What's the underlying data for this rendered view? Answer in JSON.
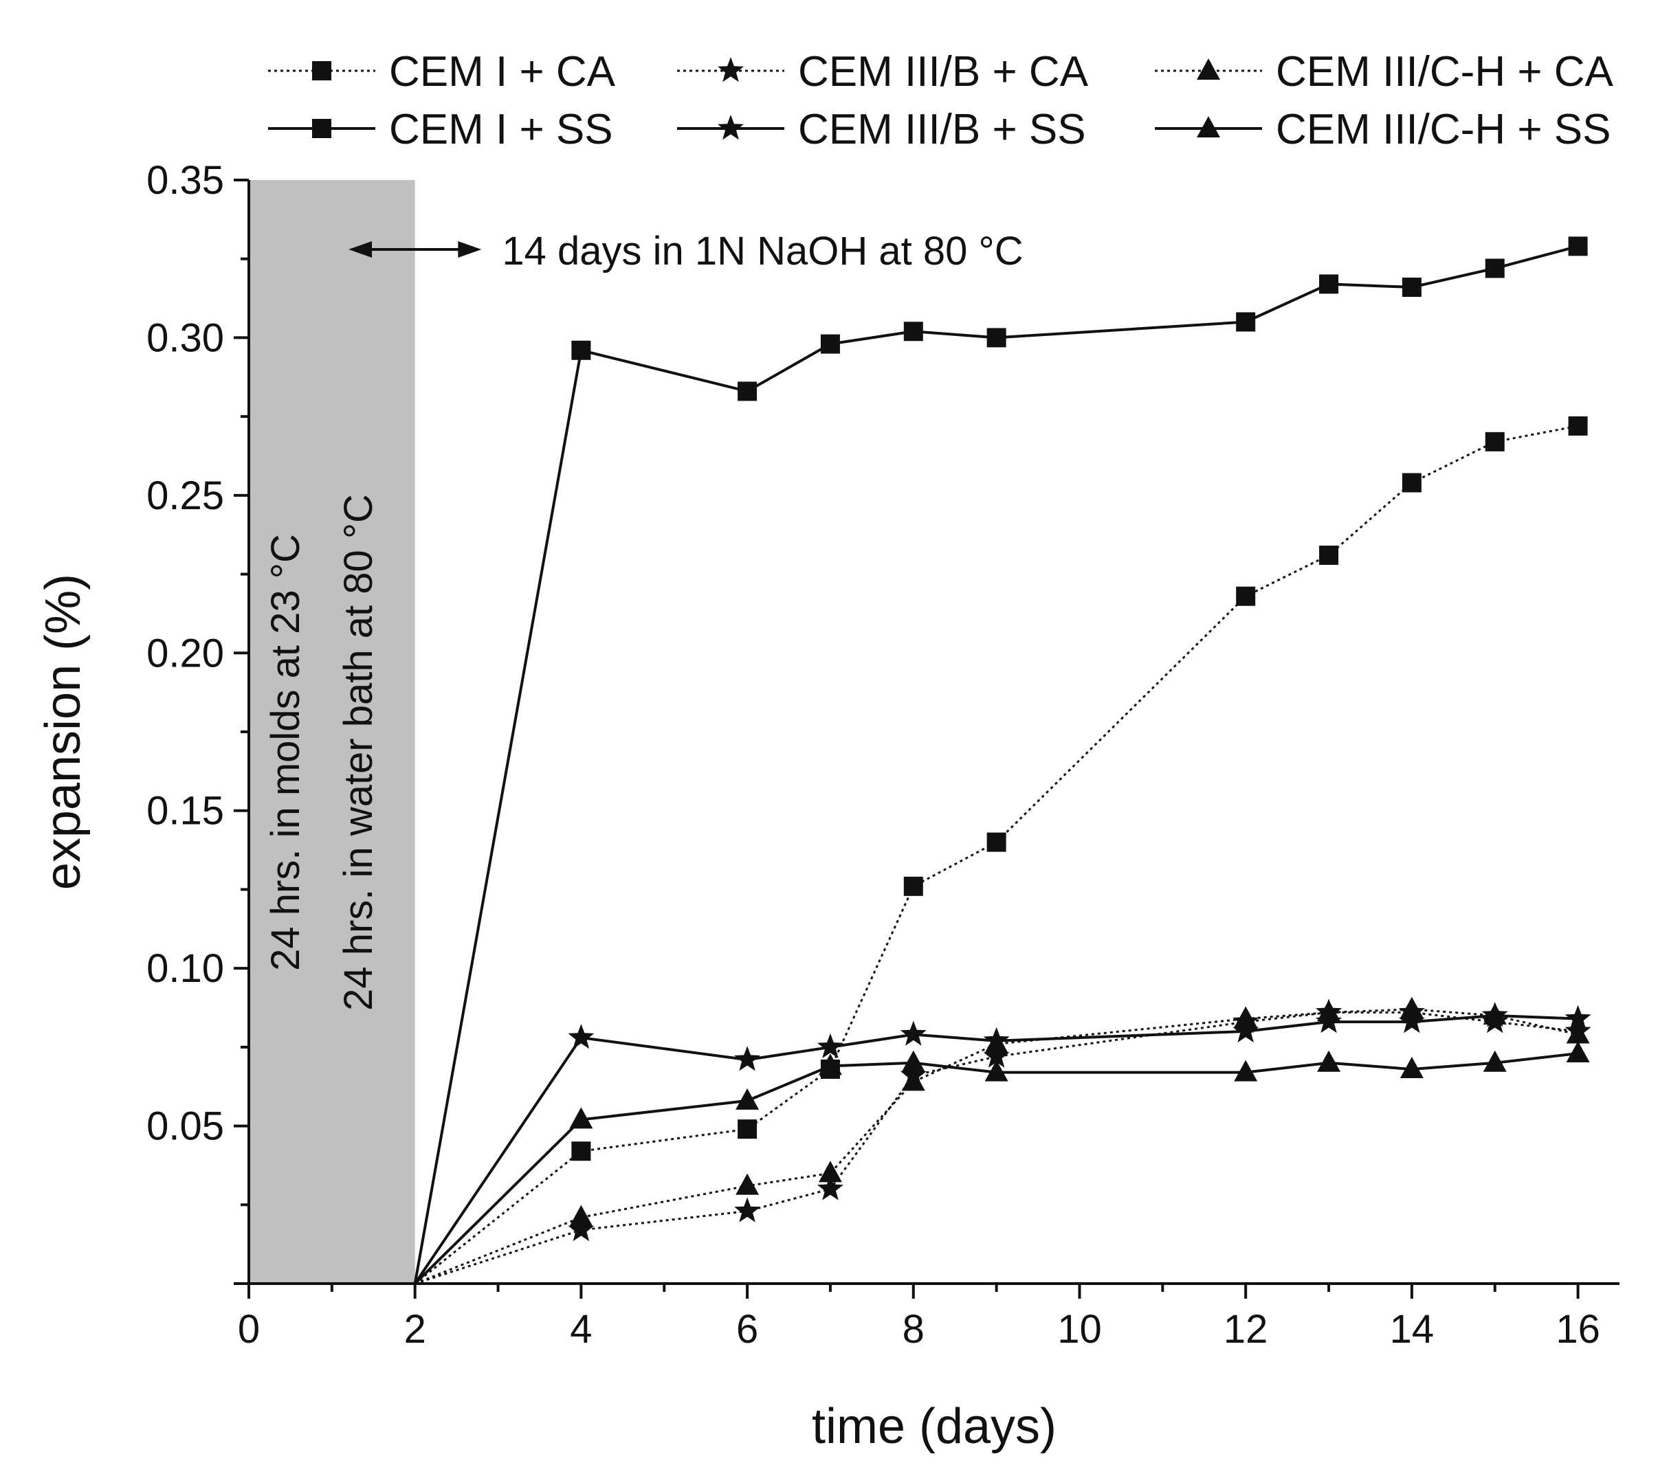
{
  "chart_data": {
    "type": "line",
    "title": "",
    "xlabel": "time (days)",
    "ylabel": "expansion (%)",
    "xlim": [
      0,
      16.5
    ],
    "ylim": [
      0,
      0.35
    ],
    "x_ticks": [
      "0",
      "2",
      "4",
      "6",
      "8",
      "10",
      "12",
      "14",
      "16"
    ],
    "y_ticks": [
      "0.05",
      "0.10",
      "0.15",
      "0.20",
      "0.25",
      "0.30",
      "0.35"
    ],
    "grid": false,
    "legend_position": "top",
    "shaded_region": {
      "x_range": [
        0,
        2
      ],
      "color": "#c0c0c0",
      "label_line1": "24 hrs. in molds at 23 °C",
      "label_line2": "24 hrs. in water bath at 80 °C"
    },
    "annotation": {
      "text": "14 days in 1N NaOH at 80 °C",
      "arrow_x_range": [
        1.2,
        2.8
      ],
      "arrow_y": 0.328
    },
    "series": [
      {
        "name": "CEM I + CA",
        "line_style": "dotted",
        "marker": "square",
        "x": [
          2,
          4,
          6,
          7,
          8,
          9,
          12,
          13,
          14,
          15,
          16
        ],
        "values": [
          0,
          0.042,
          0.049,
          0.068,
          0.126,
          0.14,
          0.218,
          0.231,
          0.254,
          0.267,
          0.272
        ]
      },
      {
        "name": "CEM III/B + CA",
        "line_style": "dotted",
        "marker": "star",
        "x": [
          2,
          4,
          6,
          7,
          8,
          9,
          12,
          13,
          14,
          15,
          16
        ],
        "values": [
          0,
          0.017,
          0.023,
          0.03,
          0.066,
          0.072,
          0.083,
          0.086,
          0.086,
          0.083,
          0.08
        ]
      },
      {
        "name": "CEM III/C-H + CA",
        "line_style": "dotted",
        "marker": "triangle",
        "x": [
          2,
          4,
          6,
          7,
          8,
          9,
          12,
          13,
          14,
          15,
          16
        ],
        "values": [
          0,
          0.021,
          0.031,
          0.035,
          0.064,
          0.076,
          0.084,
          0.086,
          0.087,
          0.085,
          0.079
        ]
      },
      {
        "name": "CEM I + SS",
        "line_style": "solid",
        "marker": "square",
        "x": [
          2,
          4,
          6,
          7,
          8,
          9,
          12,
          13,
          14,
          15,
          16
        ],
        "values": [
          0,
          0.296,
          0.283,
          0.298,
          0.302,
          0.3,
          0.305,
          0.317,
          0.316,
          0.322,
          0.329
        ]
      },
      {
        "name": "CEM III/B + SS",
        "line_style": "solid",
        "marker": "star",
        "x": [
          2,
          4,
          6,
          7,
          8,
          9,
          12,
          13,
          14,
          15,
          16
        ],
        "values": [
          0,
          0.078,
          0.071,
          0.075,
          0.079,
          0.077,
          0.08,
          0.083,
          0.083,
          0.085,
          0.084
        ]
      },
      {
        "name": "CEM III/C-H + SS",
        "line_style": "solid",
        "marker": "triangle",
        "x": [
          2,
          4,
          6,
          7,
          8,
          9,
          12,
          13,
          14,
          15,
          16
        ],
        "values": [
          0,
          0.052,
          0.058,
          0.069,
          0.07,
          0.067,
          0.067,
          0.07,
          0.068,
          0.07,
          0.073
        ]
      }
    ]
  }
}
